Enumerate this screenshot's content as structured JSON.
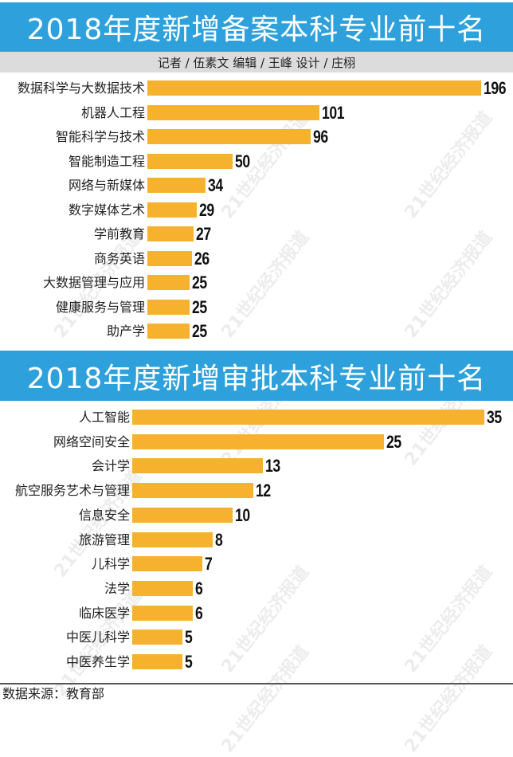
{
  "header": {
    "title_1": "2018年度新增备案本科专业前十名",
    "credits": "记者 / 伍素文  编辑 / 王峰    设计 / 庄栩",
    "title_2": "2018年度新增审批本科专业前十名"
  },
  "footer": {
    "source": "数据来源：教育部"
  },
  "watermark": "21世纪经济报道",
  "colors": {
    "band": "#2ea1dc",
    "bar": "#f6b22e",
    "credit_band": "#dcdcdc"
  },
  "chart_data": [
    {
      "type": "bar",
      "orientation": "horizontal",
      "title": "2018年度新增备案本科专业前十名",
      "categories": [
        "数据科学与大数据技术",
        "机器人工程",
        "智能科学与技术",
        "智能制造工程",
        "网络与新媒体",
        "数字媒体艺术",
        "学前教育",
        "商务英语",
        "大数据管理与应用",
        "健康服务与管理",
        "助产学"
      ],
      "values": [
        196,
        101,
        96,
        50,
        34,
        29,
        27,
        26,
        25,
        25,
        25
      ],
      "xlabel": "",
      "ylabel": "",
      "grid": false,
      "data_labels": true
    },
    {
      "type": "bar",
      "orientation": "horizontal",
      "title": "2018年度新增审批本科专业前十名",
      "categories": [
        "人工智能",
        "网络空间安全",
        "会计学",
        "航空服务艺术与管理",
        "信息安全",
        "旅游管理",
        "儿科学",
        "法学",
        "临床医学",
        "中医儿科学",
        "中医养生学"
      ],
      "values": [
        35,
        25,
        13,
        12,
        10,
        8,
        7,
        6,
        6,
        5,
        5
      ],
      "xlabel": "",
      "ylabel": "",
      "grid": false,
      "data_labels": true
    }
  ]
}
